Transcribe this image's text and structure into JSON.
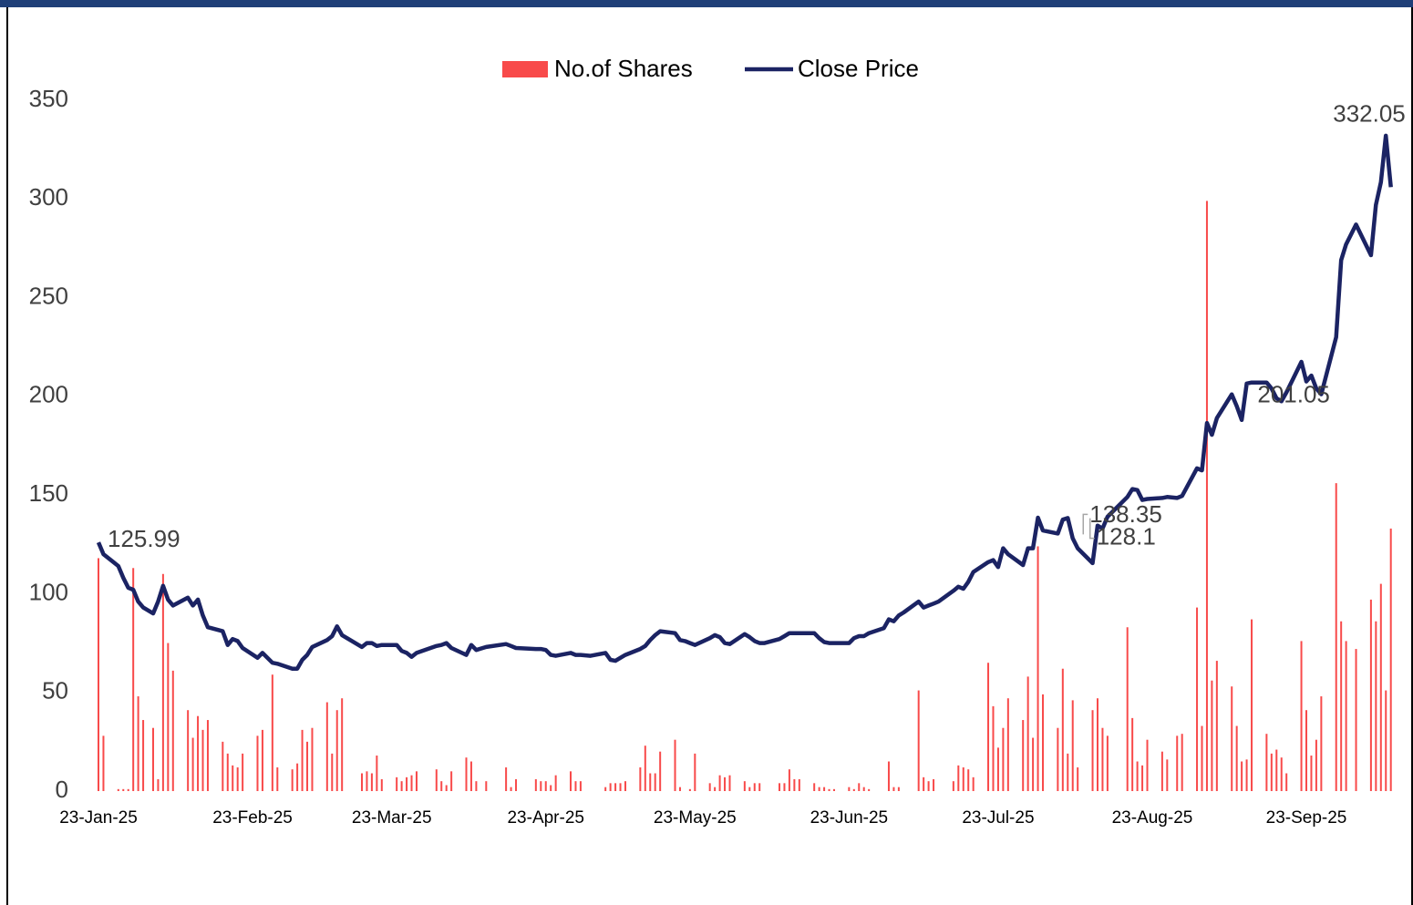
{
  "chart_data": {
    "type": "bar-line",
    "x": [
      "2025-01-23",
      "2025-01-24",
      "2025-01-27",
      "2025-01-28",
      "2025-01-29",
      "2025-01-30",
      "2025-01-31",
      "2025-02-01",
      "2025-02-03",
      "2025-02-04",
      "2025-02-05",
      "2025-02-06",
      "2025-02-07",
      "2025-02-10",
      "2025-02-11",
      "2025-02-12",
      "2025-02-13",
      "2025-02-14",
      "2025-02-17",
      "2025-02-18",
      "2025-02-19",
      "2025-02-20",
      "2025-02-21",
      "2025-02-24",
      "2025-02-25",
      "2025-02-27",
      "2025-02-28",
      "2025-03-03",
      "2025-03-04",
      "2025-03-05",
      "2025-03-06",
      "2025-03-07",
      "2025-03-10",
      "2025-03-11",
      "2025-03-12",
      "2025-03-13",
      "2025-03-17",
      "2025-03-18",
      "2025-03-19",
      "2025-03-20",
      "2025-03-21",
      "2025-03-24",
      "2025-03-25",
      "2025-03-26",
      "2025-03-27",
      "2025-03-28",
      "2025-04-01",
      "2025-04-02",
      "2025-04-03",
      "2025-04-04",
      "2025-04-07",
      "2025-04-08",
      "2025-04-09",
      "2025-04-11",
      "2025-04-15",
      "2025-04-16",
      "2025-04-17",
      "2025-04-21",
      "2025-04-22",
      "2025-04-23",
      "2025-04-24",
      "2025-04-25",
      "2025-04-28",
      "2025-04-29",
      "2025-04-30",
      "2025-05-02",
      "2025-05-05",
      "2025-05-06",
      "2025-05-07",
      "2025-05-08",
      "2025-05-09",
      "2025-05-12",
      "2025-05-13",
      "2025-05-14",
      "2025-05-15",
      "2025-05-16",
      "2025-05-19",
      "2025-05-20",
      "2025-05-21",
      "2025-05-22",
      "2025-05-23",
      "2025-05-26",
      "2025-05-27",
      "2025-05-28",
      "2025-05-29",
      "2025-05-30",
      "2025-06-02",
      "2025-06-03",
      "2025-06-04",
      "2025-06-05",
      "2025-06-06",
      "2025-06-09",
      "2025-06-10",
      "2025-06-11",
      "2025-06-12",
      "2025-06-13",
      "2025-06-16",
      "2025-06-17",
      "2025-06-18",
      "2025-06-19",
      "2025-06-20",
      "2025-06-23",
      "2025-06-24",
      "2025-06-25",
      "2025-06-26",
      "2025-06-27",
      "2025-06-30",
      "2025-07-01",
      "2025-07-02",
      "2025-07-03",
      "2025-07-04",
      "2025-07-07",
      "2025-07-08",
      "2025-07-09",
      "2025-07-10",
      "2025-07-11",
      "2025-07-14",
      "2025-07-15",
      "2025-07-16",
      "2025-07-17",
      "2025-07-18",
      "2025-07-21",
      "2025-07-22",
      "2025-07-23",
      "2025-07-24",
      "2025-07-25",
      "2025-07-28",
      "2025-07-29",
      "2025-07-30",
      "2025-07-31",
      "2025-08-01",
      "2025-08-04",
      "2025-08-05",
      "2025-08-06",
      "2025-08-07",
      "2025-08-08",
      "2025-08-11",
      "2025-08-12",
      "2025-08-13",
      "2025-08-14",
      "2025-08-18",
      "2025-08-19",
      "2025-08-20",
      "2025-08-21",
      "2025-08-22",
      "2025-08-25",
      "2025-08-26",
      "2025-08-28",
      "2025-08-29",
      "2025-09-01",
      "2025-09-02",
      "2025-09-03",
      "2025-09-04",
      "2025-09-05",
      "2025-09-08",
      "2025-09-09",
      "2025-09-10",
      "2025-09-11",
      "2025-09-12",
      "2025-09-15",
      "2025-09-16",
      "2025-09-17",
      "2025-09-18",
      "2025-09-19",
      "2025-09-22",
      "2025-09-23",
      "2025-09-24",
      "2025-09-25",
      "2025-09-26",
      "2025-09-29",
      "2025-09-30",
      "2025-10-01",
      "2025-10-03",
      "2025-10-06",
      "2025-10-07",
      "2025-10-08",
      "2025-10-09",
      "2025-10-10"
    ],
    "series": [
      {
        "name": "No.of Shares",
        "type": "bar",
        "color": "#f84a4a",
        "values": [
          118,
          28,
          1,
          1,
          1,
          113,
          48,
          36,
          32,
          6,
          110,
          75,
          61,
          41,
          27,
          38,
          31,
          36,
          25,
          19,
          13,
          12,
          19,
          28,
          31,
          59,
          12,
          11,
          14,
          31,
          25,
          32,
          45,
          19,
          41,
          47,
          9,
          10,
          9,
          18,
          6,
          7,
          5,
          7,
          8,
          10,
          11,
          5,
          3,
          10,
          17,
          15,
          5,
          5,
          12,
          2,
          6,
          6,
          5,
          5,
          3,
          8,
          10,
          5,
          5,
          0,
          2,
          4,
          4,
          4,
          5,
          12,
          23,
          9,
          9,
          20,
          26,
          2,
          0,
          1,
          19,
          4,
          2,
          8,
          7,
          8,
          5,
          2,
          4,
          4,
          0,
          4,
          4,
          11,
          6,
          6,
          4,
          2,
          2,
          1,
          1,
          2,
          1,
          4,
          2,
          1,
          0,
          15,
          2,
          2,
          0,
          51,
          7,
          5,
          6,
          0,
          5,
          13,
          12,
          11,
          7,
          65,
          43,
          22,
          32,
          47,
          36,
          58,
          27,
          124,
          49,
          32,
          62,
          19,
          46,
          12,
          41,
          47,
          32,
          28,
          83,
          37,
          15,
          13,
          26,
          20,
          16,
          28,
          29,
          93,
          33,
          299,
          56,
          66,
          53,
          33,
          15,
          16,
          87,
          29,
          19,
          21,
          17,
          9,
          76,
          41,
          18,
          26,
          48,
          156,
          86,
          76,
          72,
          97,
          86,
          105,
          51,
          133
        ]
      },
      {
        "name": "Close Price",
        "type": "line",
        "color": "#1b2363",
        "values": [
          125.99,
          120,
          114,
          108,
          103,
          102,
          96,
          93,
          90,
          96,
          104,
          97,
          94,
          98,
          94,
          97,
          89,
          83,
          81,
          74,
          77,
          76,
          72.5,
          67.5,
          70,
          65,
          64.5,
          62,
          62,
          66.5,
          69,
          73,
          76.5,
          78.5,
          83.5,
          79,
          73,
          75,
          75,
          73.5,
          74,
          74,
          71,
          70,
          68,
          70,
          73.5,
          74,
          75,
          72.5,
          69,
          74,
          71.5,
          73,
          74.5,
          73.5,
          72.5,
          72,
          72,
          71.5,
          69,
          68.5,
          70,
          69,
          69,
          68.5,
          70,
          66.5,
          66,
          67.5,
          69,
          72,
          73.5,
          76.5,
          79,
          81,
          80,
          76.5,
          76,
          75,
          74,
          77.5,
          79,
          78,
          75,
          74.5,
          79.5,
          78,
          76,
          75,
          75,
          77,
          78.5,
          80,
          80,
          80,
          80,
          77.5,
          75.5,
          75,
          75,
          75,
          77.5,
          78.5,
          78.5,
          80,
          82.5,
          87,
          86,
          89,
          90.5,
          96,
          93,
          94,
          95,
          96,
          101.5,
          103.5,
          102.5,
          106,
          111,
          116,
          117,
          113.5,
          123,
          120,
          114.5,
          123,
          123,
          138.5,
          132,
          130.5,
          137.5,
          138.35,
          128.1,
          123,
          115.5,
          134.5,
          133,
          139,
          149,
          153,
          152.5,
          147.5,
          148,
          148.5,
          149,
          148.5,
          149.5,
          163.5,
          162.5,
          186.5,
          180.5,
          189,
          201,
          195,
          188,
          206.5,
          207,
          207,
          204,
          199,
          197.5,
          202,
          217.5,
          207.5,
          210.5,
          204,
          201.05,
          230,
          269,
          277,
          287,
          271.5,
          297,
          308.5,
          332.05,
          306
        ],
        "labeled_points": [
          0,
          133,
          134,
          168,
          176
        ]
      }
    ],
    "xlim": [
      "2025-01-23",
      "2025-10-10"
    ],
    "xticks": [
      {
        "value": "2025-01-23",
        "label": "23-Jan-25"
      },
      {
        "value": "2025-02-23",
        "label": "23-Feb-25"
      },
      {
        "value": "2025-03-23",
        "label": "23-Mar-25"
      },
      {
        "value": "2025-04-23",
        "label": "23-Apr-25"
      },
      {
        "value": "2025-05-23",
        "label": "23-May-25"
      },
      {
        "value": "2025-06-23",
        "label": "23-Jun-25"
      },
      {
        "value": "2025-07-23",
        "label": "23-Jul-25"
      },
      {
        "value": "2025-08-23",
        "label": "23-Aug-25"
      },
      {
        "value": "2025-09-23",
        "label": "23-Sep-25"
      }
    ],
    "ylim": [
      0,
      350
    ],
    "yticks": [
      0,
      50,
      100,
      150,
      200,
      250,
      300,
      350
    ],
    "legend": "top"
  }
}
